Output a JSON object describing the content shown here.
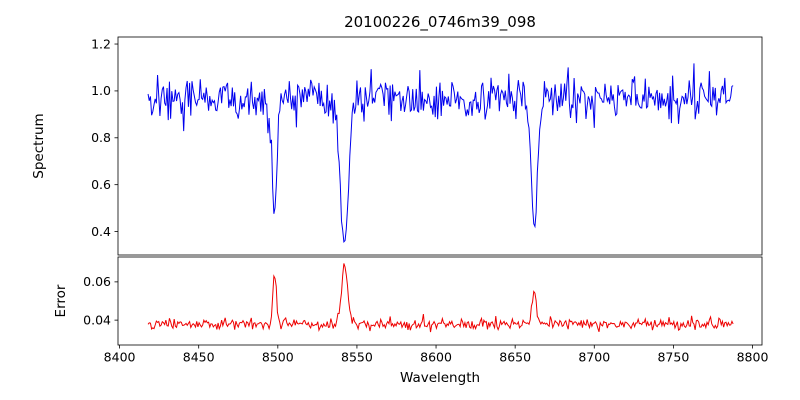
{
  "chart_data": {
    "type": "line",
    "title": "20100226_0746m39_098",
    "xlabel": "Wavelength",
    "grid": false,
    "legend": "none",
    "xlim": [
      8399,
      8806
    ],
    "x_ticks": [
      "8400",
      "8450",
      "8500",
      "8550",
      "8600",
      "8650",
      "8700",
      "8750",
      "8800"
    ],
    "x_range": [
      8418,
      8788
    ],
    "x_step": 0.75,
    "panels": [
      {
        "name": "spectrum",
        "ylabel": "Spectrum",
        "line_color": "#0000ee",
        "ylim": [
          0.3,
          1.23
        ],
        "y_ticks": [
          "0.4",
          "0.6",
          "0.8",
          "1.0",
          "1.2"
        ],
        "continuum_level": 0.97,
        "noise_std": 0.045,
        "noise_seed": 20100226,
        "absorption_lines": [
          {
            "center": 8498.0,
            "depth": 0.47,
            "sigma": 1.6,
            "min_value": 0.49
          },
          {
            "center": 8542.1,
            "depth": 0.62,
            "sigma": 2.6,
            "min_value": 0.35
          },
          {
            "center": 8662.1,
            "depth": 0.56,
            "sigma": 1.9,
            "min_value": 0.41
          }
        ]
      },
      {
        "name": "error",
        "ylabel": "Error",
        "line_color": "#ee0000",
        "ylim": [
          0.027,
          0.073
        ],
        "y_ticks": [
          "0.04",
          "0.06"
        ],
        "continuum_level": 0.038,
        "noise_std": 0.0014,
        "noise_seed": 746039,
        "emission_spikes": [
          {
            "center": 8498.0,
            "amp": 0.028,
            "sigma": 1.1,
            "peak_value": 0.066
          },
          {
            "center": 8542.1,
            "amp": 0.031,
            "sigma": 1.9,
            "peak_value": 0.069
          },
          {
            "center": 8662.1,
            "amp": 0.017,
            "sigma": 1.4,
            "peak_value": 0.055
          }
        ]
      }
    ]
  }
}
